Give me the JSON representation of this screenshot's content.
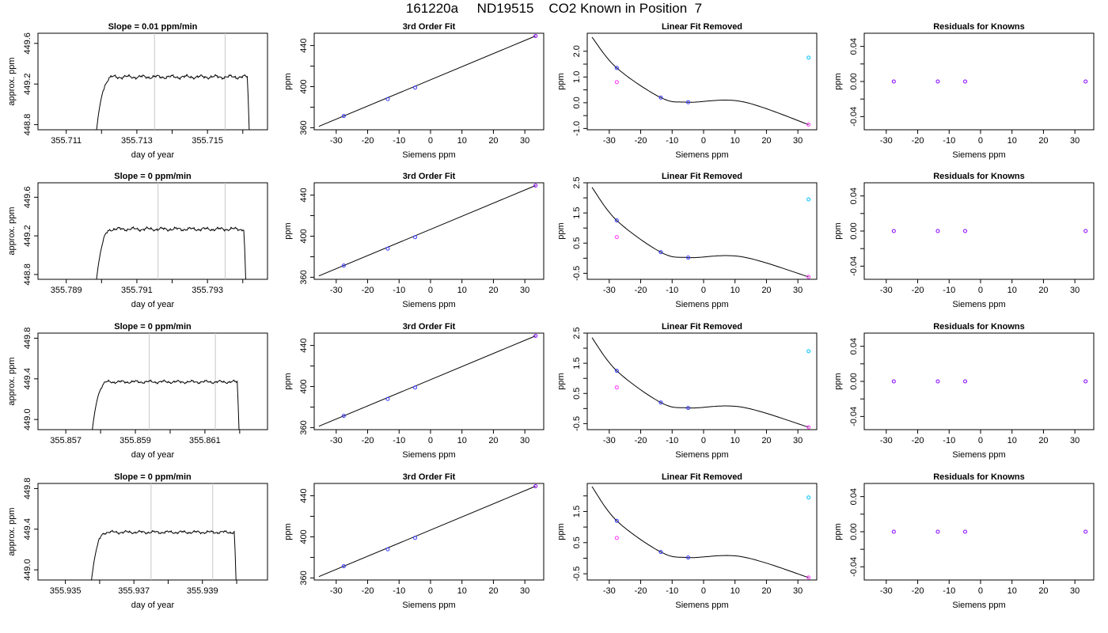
{
  "title": "161220a     ND19515    CO2 Known in Position  7",
  "colors": {
    "line": "#000000",
    "guide": "#c8c8c8",
    "knownBlue": "#3333ff",
    "magenta": "#ff33ff",
    "cyan": "#00bfff",
    "purple": "#8800ff"
  },
  "rows": [
    {
      "trace": {
        "title": "Slope =  0.01  ppm/min",
        "xlabel": "day of year",
        "ylabel": "approx. ppm",
        "xlim": [
          355.7102,
          355.7167
        ],
        "ylim": [
          448.75,
          449.7
        ],
        "xticks": [
          "355.711",
          "355.713",
          "355.715"
        ],
        "xtick_values": [
          355.711,
          355.713,
          355.715
        ],
        "yticks": [
          "448.8",
          "449.2",
          "449.6"
        ],
        "ytick_values": [
          448.8,
          449.2,
          449.6
        ],
        "xminor": [
          355.712,
          355.714,
          355.716
        ],
        "guides": [
          355.7135,
          355.7155
        ],
        "start": 355.7118,
        "end": 355.7162,
        "level": 449.27,
        "noise": 0.025
      },
      "fit": {
        "title": "3rd Order Fit",
        "xlabel": "Siemens ppm",
        "ylabel": "ppm",
        "points": [
          {
            "x": -27.6,
            "y": 371.4
          },
          {
            "x": -13.6,
            "y": 387.9
          },
          {
            "x": -4.9,
            "y": 399.0
          },
          {
            "x": 33.4,
            "y": 449.3
          }
        ]
      },
      "lin": {
        "title": "Linear Fit Removed",
        "xlabel": "Siemens ppm",
        "ylabel": "ppm",
        "ylim": [
          -1.05,
          2.7
        ],
        "yticks": [
          "-1.0",
          "0.0",
          "1.0",
          "2.0"
        ],
        "ytick_values": [
          -1.0,
          0.0,
          1.0,
          2.0
        ],
        "yminor": [
          -0.5,
          0.5,
          1.5
        ],
        "curve_edge": [
          2.55,
          -0.85
        ],
        "points": [
          {
            "x": -27.6,
            "y": 1.35,
            "color": "blue"
          },
          {
            "x": -27.6,
            "y": 0.8,
            "color": "magenta"
          },
          {
            "x": -13.6,
            "y": 0.2,
            "color": "blue"
          },
          {
            "x": -4.9,
            "y": 0.02,
            "color": "blue"
          },
          {
            "x": 33.4,
            "y": 1.75,
            "color": "cyan"
          },
          {
            "x": 33.4,
            "y": -0.85,
            "color": "magenta"
          }
        ]
      },
      "res": {
        "title": "Residuals for Knowns",
        "xlabel": "Siemens ppm",
        "ylabel": "ppm",
        "points": [
          {
            "x": -27.6,
            "y": 0.0
          },
          {
            "x": -13.6,
            "y": 0.0
          },
          {
            "x": -4.9,
            "y": 0.0
          },
          {
            "x": 33.4,
            "y": 0.0
          }
        ]
      }
    },
    {
      "trace": {
        "title": "Slope =  0  ppm/min",
        "xlabel": "day of year",
        "ylabel": "approx. ppm",
        "xlim": [
          355.7882,
          355.7947
        ],
        "ylim": [
          448.75,
          449.75
        ],
        "xticks": [
          "355.789",
          "355.791",
          "355.793"
        ],
        "xtick_values": [
          355.789,
          355.791,
          355.793
        ],
        "yticks": [
          "448.8",
          "449.2",
          "449.6"
        ],
        "ytick_values": [
          448.8,
          449.2,
          449.6
        ],
        "xminor": [
          355.79,
          355.792,
          355.794
        ],
        "guides": [
          355.7916,
          355.7935
        ],
        "start": 355.7898,
        "end": 355.7941,
        "level": 449.27,
        "noise": 0.025
      },
      "fit": {
        "title": "3rd Order Fit",
        "xlabel": "Siemens ppm",
        "ylabel": "ppm",
        "points": [
          {
            "x": -27.6,
            "y": 371.4
          },
          {
            "x": -13.6,
            "y": 387.9
          },
          {
            "x": -4.9,
            "y": 399.0
          },
          {
            "x": 33.4,
            "y": 449.3
          }
        ]
      },
      "lin": {
        "title": "Linear Fit Removed",
        "xlabel": "Siemens ppm",
        "ylabel": "ppm",
        "ylim": [
          -0.7,
          2.5
        ],
        "yticks": [
          "-0.5",
          "0.5",
          "1.5",
          "2.5"
        ],
        "ytick_values": [
          -0.5,
          0.5,
          1.5,
          2.5
        ],
        "yminor": [
          0.0,
          1.0,
          2.0
        ],
        "curve_edge": [
          2.35,
          -0.62
        ],
        "points": [
          {
            "x": -27.6,
            "y": 1.25,
            "color": "blue"
          },
          {
            "x": -27.6,
            "y": 0.7,
            "color": "magenta"
          },
          {
            "x": -13.6,
            "y": 0.2,
            "color": "blue"
          },
          {
            "x": -4.9,
            "y": 0.02,
            "color": "blue"
          },
          {
            "x": 33.4,
            "y": 1.95,
            "color": "cyan"
          },
          {
            "x": 33.4,
            "y": -0.62,
            "color": "magenta"
          }
        ]
      },
      "res": {
        "title": "Residuals for Knowns",
        "xlabel": "Siemens ppm",
        "ylabel": "ppm",
        "points": [
          {
            "x": -27.6,
            "y": 0.0
          },
          {
            "x": -13.6,
            "y": 0.0
          },
          {
            "x": -4.9,
            "y": 0.0
          },
          {
            "x": 33.4,
            "y": 0.0
          }
        ]
      }
    },
    {
      "trace": {
        "title": "Slope =  0  ppm/min",
        "xlabel": "day of year",
        "ylabel": "approx. ppm",
        "xlim": [
          355.8562,
          355.8628
        ],
        "ylim": [
          448.9,
          449.85
        ],
        "xticks": [
          "355.857",
          "355.859",
          "355.861"
        ],
        "xtick_values": [
          355.857,
          355.859,
          355.861
        ],
        "yticks": [
          "449.0",
          "449.4",
          "449.8"
        ],
        "ytick_values": [
          449.0,
          449.4,
          449.8
        ],
        "xminor": [
          355.858,
          355.86,
          355.862
        ],
        "guides": [
          355.8594,
          355.8613
        ],
        "start": 355.8577,
        "end": 355.862,
        "level": 449.37,
        "noise": 0.02
      },
      "fit": {
        "title": "3rd Order Fit",
        "xlabel": "Siemens ppm",
        "ylabel": "ppm",
        "points": [
          {
            "x": -27.6,
            "y": 371.4
          },
          {
            "x": -13.6,
            "y": 387.9
          },
          {
            "x": -4.9,
            "y": 399.0
          },
          {
            "x": 33.4,
            "y": 449.3
          }
        ]
      },
      "lin": {
        "title": "Linear Fit Removed",
        "xlabel": "Siemens ppm",
        "ylabel": "ppm",
        "ylim": [
          -0.7,
          2.5
        ],
        "yticks": [
          "-0.5",
          "0.5",
          "1.5",
          "2.5"
        ],
        "ytick_values": [
          -0.5,
          0.5,
          1.5,
          2.5
        ],
        "yminor": [
          0.0,
          1.0,
          2.0
        ],
        "curve_edge": [
          2.35,
          -0.62
        ],
        "points": [
          {
            "x": -27.6,
            "y": 1.25,
            "color": "blue"
          },
          {
            "x": -27.6,
            "y": 0.7,
            "color": "magenta"
          },
          {
            "x": -13.6,
            "y": 0.2,
            "color": "blue"
          },
          {
            "x": -4.9,
            "y": 0.02,
            "color": "blue"
          },
          {
            "x": 33.4,
            "y": 1.9,
            "color": "cyan"
          },
          {
            "x": 33.4,
            "y": -0.62,
            "color": "magenta"
          }
        ]
      },
      "res": {
        "title": "Residuals for Knowns",
        "xlabel": "Siemens ppm",
        "ylabel": "ppm",
        "points": [
          {
            "x": -27.6,
            "y": 0.0
          },
          {
            "x": -13.6,
            "y": 0.0
          },
          {
            "x": -4.9,
            "y": 0.0
          },
          {
            "x": 33.4,
            "y": 0.0
          }
        ]
      }
    },
    {
      "trace": {
        "title": "Slope =  0  ppm/min",
        "xlabel": "day of year",
        "ylabel": "approx. ppm",
        "xlim": [
          355.9342,
          355.9409
        ],
        "ylim": [
          448.9,
          449.85
        ],
        "xticks": [
          "355.935",
          "355.937",
          "355.939"
        ],
        "xtick_values": [
          355.935,
          355.937,
          355.939
        ],
        "yticks": [
          "449.0",
          "449.4",
          "449.8"
        ],
        "ytick_values": [
          449.0,
          449.4,
          449.8
        ],
        "xminor": [
          355.936,
          355.938,
          355.94
        ],
        "guides": [
          355.9375,
          355.9393
        ],
        "start": 355.9357,
        "end": 355.94,
        "level": 449.37,
        "noise": 0.02
      },
      "fit": {
        "title": "3rd Order Fit",
        "xlabel": "Siemens ppm",
        "ylabel": "ppm",
        "points": [
          {
            "x": -27.6,
            "y": 371.4
          },
          {
            "x": -13.6,
            "y": 387.9
          },
          {
            "x": -4.9,
            "y": 399.0
          },
          {
            "x": 33.4,
            "y": 449.3
          }
        ]
      },
      "lin": {
        "title": "Linear Fit Removed",
        "xlabel": "Siemens ppm",
        "ylabel": "ppm",
        "ylim": [
          -0.7,
          2.4
        ],
        "yticks": [
          "-0.5",
          "0.5",
          "1.5"
        ],
        "ytick_values": [
          -0.5,
          0.5,
          1.5
        ],
        "yminor": [
          0.0,
          1.0,
          2.0
        ],
        "curve_edge": [
          2.3,
          -0.62
        ],
        "points": [
          {
            "x": -27.6,
            "y": 1.2,
            "color": "blue"
          },
          {
            "x": -27.6,
            "y": 0.65,
            "color": "magenta"
          },
          {
            "x": -13.6,
            "y": 0.2,
            "color": "blue"
          },
          {
            "x": -4.9,
            "y": 0.02,
            "color": "blue"
          },
          {
            "x": 33.4,
            "y": 1.95,
            "color": "cyan"
          },
          {
            "x": 33.4,
            "y": -0.62,
            "color": "magenta"
          }
        ]
      },
      "res": {
        "title": "Residuals for Knowns",
        "xlabel": "Siemens ppm",
        "ylabel": "ppm",
        "points": [
          {
            "x": -27.6,
            "y": 0.0
          },
          {
            "x": -13.6,
            "y": 0.0
          },
          {
            "x": -4.9,
            "y": 0.0
          },
          {
            "x": 33.4,
            "y": 0.0
          }
        ]
      }
    }
  ],
  "shared": {
    "siemens_xlim": [
      -37,
      36
    ],
    "siemens_xticks": [
      "-30",
      "-20",
      "-10",
      "0",
      "10",
      "20",
      "30"
    ],
    "siemens_xtick_values": [
      -30,
      -20,
      -10,
      0,
      10,
      20,
      30
    ],
    "fit_ylim": [
      358,
      452
    ],
    "fit_yticks": [
      "360",
      "400",
      "440"
    ],
    "fit_ytick_values": [
      360,
      400,
      440
    ],
    "fit_yminor": [
      380,
      420
    ],
    "res_ylim": [
      -0.055,
      0.055
    ],
    "res_yticks": [
      "-0.04",
      "0.00",
      "0.04"
    ],
    "res_ytick_values": [
      -0.04,
      0.0,
      0.04
    ],
    "res_yminor": [
      -0.02,
      0.02
    ]
  }
}
